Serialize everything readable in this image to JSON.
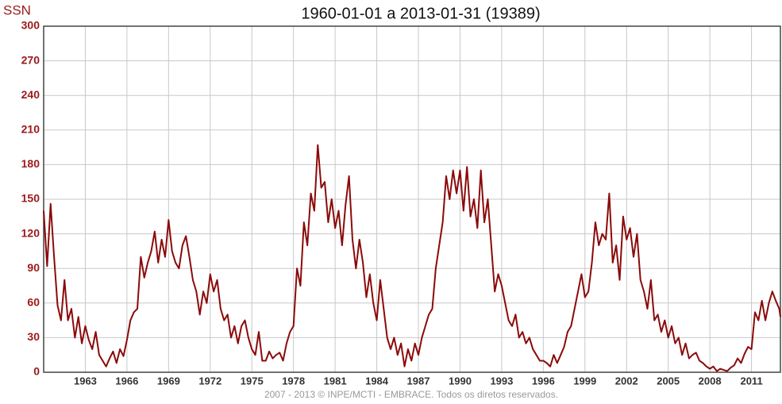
{
  "chart_data": {
    "type": "line",
    "title": "1960-01-01 a 2013-01-31 (19389)",
    "ylabel": "SSN",
    "annotation": "2007 - 2013 © INPE/MCTI - EMBRACE. Todos os diretos reservados.",
    "xlim": [
      1960,
      2013.083
    ],
    "ylim": [
      0,
      300
    ],
    "xticks": [
      1963,
      1966,
      1969,
      1972,
      1975,
      1978,
      1981,
      1984,
      1987,
      1990,
      1993,
      1996,
      1999,
      2002,
      2005,
      2008,
      2011
    ],
    "yticks": [
      0,
      30,
      60,
      90,
      120,
      150,
      180,
      210,
      240,
      270,
      300
    ],
    "grid": true,
    "x": [
      1960,
      1960.25,
      1960.5,
      1960.75,
      1961,
      1961.25,
      1961.5,
      1961.75,
      1962,
      1962.25,
      1962.5,
      1962.75,
      1963,
      1963.25,
      1963.5,
      1963.75,
      1964,
      1964.25,
      1964.5,
      1964.75,
      1965,
      1965.25,
      1965.5,
      1965.75,
      1966,
      1966.25,
      1966.5,
      1966.75,
      1967,
      1967.25,
      1967.5,
      1967.75,
      1968,
      1968.25,
      1968.5,
      1968.75,
      1969,
      1969.25,
      1969.5,
      1969.75,
      1970,
      1970.25,
      1970.5,
      1970.75,
      1971,
      1971.25,
      1971.5,
      1971.75,
      1972,
      1972.25,
      1972.5,
      1972.75,
      1973,
      1973.25,
      1973.5,
      1973.75,
      1974,
      1974.25,
      1974.5,
      1974.75,
      1975,
      1975.25,
      1975.5,
      1975.75,
      1976,
      1976.25,
      1976.5,
      1976.75,
      1977,
      1977.25,
      1977.5,
      1977.75,
      1978,
      1978.25,
      1978.5,
      1978.75,
      1979,
      1979.25,
      1979.5,
      1979.75,
      1980,
      1980.25,
      1980.5,
      1980.75,
      1981,
      1981.25,
      1981.5,
      1981.75,
      1982,
      1982.25,
      1982.5,
      1982.75,
      1983,
      1983.25,
      1983.5,
      1983.75,
      1984,
      1984.25,
      1984.5,
      1984.75,
      1985,
      1985.25,
      1985.5,
      1985.75,
      1986,
      1986.25,
      1986.5,
      1986.75,
      1987,
      1987.25,
      1987.5,
      1987.75,
      1988,
      1988.25,
      1988.5,
      1988.75,
      1989,
      1989.25,
      1989.5,
      1989.75,
      1990,
      1990.25,
      1990.5,
      1990.75,
      1991,
      1991.25,
      1991.5,
      1991.75,
      1992,
      1992.25,
      1992.5,
      1992.75,
      1993,
      1993.25,
      1993.5,
      1993.75,
      1994,
      1994.25,
      1994.5,
      1994.75,
      1995,
      1995.25,
      1995.5,
      1995.75,
      1996,
      1996.25,
      1996.5,
      1996.75,
      1997,
      1997.25,
      1997.5,
      1997.75,
      1998,
      1998.25,
      1998.5,
      1998.75,
      1999,
      1999.25,
      1999.5,
      1999.75,
      2000,
      2000.25,
      2000.5,
      2000.75,
      2001,
      2001.25,
      2001.5,
      2001.75,
      2002,
      2002.25,
      2002.5,
      2002.75,
      2003,
      2003.25,
      2003.5,
      2003.75,
      2004,
      2004.25,
      2004.5,
      2004.75,
      2005,
      2005.25,
      2005.5,
      2005.75,
      2006,
      2006.25,
      2006.5,
      2006.75,
      2007,
      2007.25,
      2007.5,
      2007.75,
      2008,
      2008.25,
      2008.5,
      2008.75,
      2009,
      2009.25,
      2009.5,
      2009.75,
      2010,
      2010.25,
      2010.5,
      2010.75,
      2011,
      2011.25,
      2011.5,
      2011.75,
      2012,
      2012.25,
      2012.5,
      2012.75,
      2013,
      2013.083
    ],
    "series": [
      {
        "color": "#8b0a0a",
        "values": [
          140,
          92,
          146,
          100,
          58,
          45,
          80,
          45,
          55,
          30,
          48,
          25,
          40,
          28,
          20,
          35,
          15,
          10,
          5,
          12,
          18,
          8,
          20,
          14,
          28,
          45,
          52,
          55,
          100,
          82,
          95,
          105,
          122,
          95,
          115,
          100,
          132,
          105,
          95,
          90,
          110,
          118,
          100,
          80,
          70,
          50,
          70,
          60,
          85,
          70,
          80,
          55,
          45,
          50,
          30,
          40,
          25,
          40,
          45,
          30,
          20,
          15,
          35,
          10,
          10,
          18,
          12,
          15,
          17,
          10,
          25,
          35,
          40,
          90,
          75,
          130,
          110,
          155,
          140,
          197,
          160,
          165,
          130,
          150,
          125,
          140,
          110,
          145,
          170,
          115,
          90,
          115,
          95,
          65,
          85,
          60,
          45,
          80,
          55,
          30,
          20,
          30,
          15,
          25,
          5,
          20,
          10,
          25,
          15,
          30,
          40,
          50,
          55,
          90,
          110,
          130,
          170,
          150,
          175,
          155,
          175,
          140,
          178,
          135,
          150,
          125,
          175,
          130,
          150,
          110,
          70,
          85,
          75,
          60,
          45,
          40,
          50,
          30,
          35,
          25,
          30,
          20,
          15,
          10,
          10,
          8,
          5,
          15,
          8,
          15,
          22,
          35,
          40,
          55,
          70,
          85,
          65,
          70,
          95,
          130,
          110,
          120,
          115,
          155,
          95,
          110,
          80,
          135,
          115,
          125,
          100,
          120,
          80,
          70,
          55,
          80,
          45,
          50,
          35,
          45,
          30,
          40,
          25,
          30,
          15,
          25,
          12,
          15,
          17,
          10,
          8,
          5,
          3,
          5,
          1,
          3,
          2,
          1,
          4,
          6,
          12,
          8,
          16,
          22,
          20,
          52,
          45,
          62,
          45,
          60,
          70,
          62,
          55,
          48
        ]
      }
    ]
  }
}
